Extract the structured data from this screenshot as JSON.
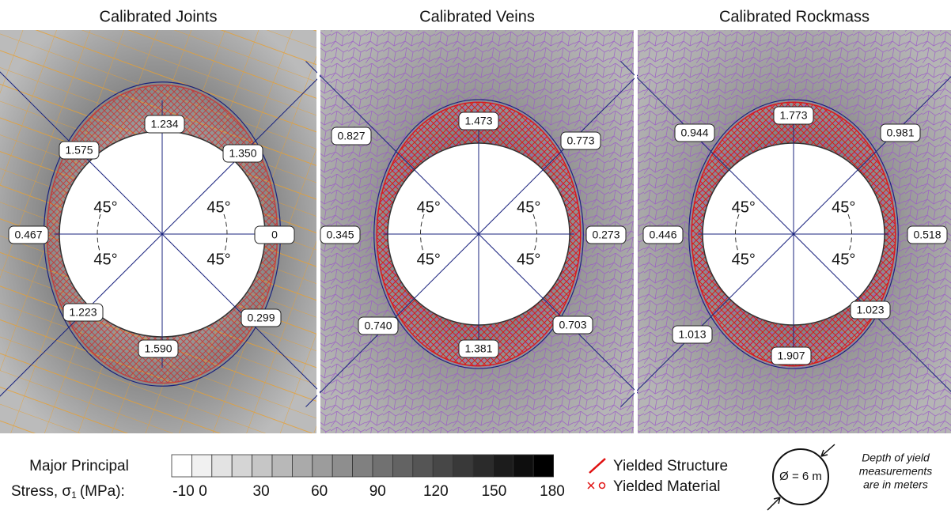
{
  "panels": [
    {
      "title": "Calibrated Joints",
      "labels": {
        "top": "1.234",
        "top_left": "1.575",
        "top_right": "1.350",
        "left": "0.467",
        "right": "0",
        "bottom_left": "1.223",
        "bottom_right": "0.299",
        "bottom": "1.590"
      }
    },
    {
      "title": "Calibrated Veins",
      "labels": {
        "top": "1.473",
        "top_left": "0.827",
        "top_right": "0.773",
        "left": "0.345",
        "right": "0.273",
        "bottom_left": "0.740",
        "bottom_right": "0.703",
        "bottom": "1.381"
      }
    },
    {
      "title": "Calibrated Rockmass",
      "labels": {
        "top": "1.773",
        "top_left": "0.944",
        "top_right": "0.981",
        "left": "0.446",
        "right": "0.518",
        "bottom_left": "1.013",
        "bottom_right": "1.023",
        "bottom": "1.907"
      }
    }
  ],
  "angle_label": "45°",
  "colorbar": {
    "title_line1": "Major Principal",
    "title_line2": "Stress, σ",
    "title_subscript": "1",
    "title_units": "(MPa):",
    "ticks": [
      -10,
      0,
      30,
      60,
      90,
      120,
      150,
      180
    ]
  },
  "legend": {
    "structure": "Yielded Structure",
    "material": "Yielded Material"
  },
  "diameter_label": "Ø = 6 m",
  "note": [
    "Depth of yield",
    "measurements",
    "are in meters"
  ]
}
